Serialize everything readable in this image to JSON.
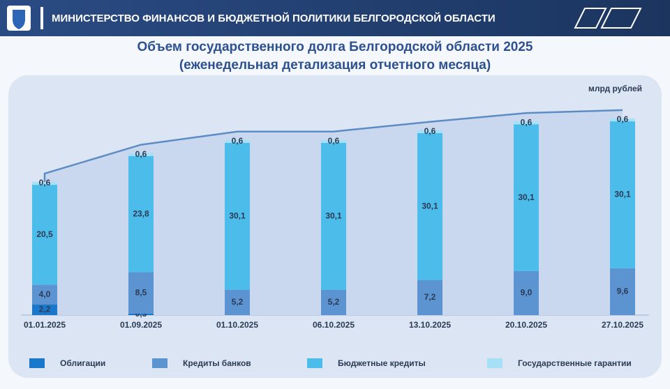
{
  "header": {
    "title": "МИНИСТЕРСТВО ФИНАНСОВ И БЮДЖЕТНОЙ ПОЛИТИКИ БЕЛГОРОДСКОЙ ОБЛАСТИ"
  },
  "chart_data": {
    "type": "stacked_bar",
    "title": "Объем государственного долга Белгородской области 2025",
    "subtitle": "(еженедельная детализация отчетного месяца)",
    "unit_label": "млрд рублей",
    "categories": [
      "01.01.2025",
      "01.09.2025",
      "01.10.2025",
      "06.10.2025",
      "13.10.2025",
      "20.10.2025",
      "27.10.2025"
    ],
    "ylim": [
      0,
      42
    ],
    "series": [
      {
        "name": "Облигации",
        "color": "#1a78cc",
        "values": [
          2.2,
          0.3,
          null,
          null,
          null,
          null,
          null
        ],
        "value_labels": [
          "2,2",
          "0,3",
          null,
          null,
          null,
          null,
          null
        ]
      },
      {
        "name": "Кредиты банков",
        "color": "#5b94d0",
        "values": [
          4.0,
          8.5,
          5.2,
          5.2,
          7.2,
          9.0,
          9.6
        ],
        "value_labels": [
          "4,0",
          "8,5",
          "5,2",
          "5,2",
          "7,2",
          "9,0",
          "9,6"
        ]
      },
      {
        "name": "Бюджетные кредиты",
        "color": "#4cbdea",
        "values": [
          20.5,
          23.8,
          30.1,
          30.1,
          30.1,
          30.1,
          30.1
        ],
        "value_labels": [
          "20,5",
          "23,8",
          "30,1",
          "30,1",
          "30,1",
          "30,1",
          "30,1"
        ]
      },
      {
        "name": "Государственные гарантии",
        "color": "#a5e0f6",
        "values": [
          0.6,
          0.6,
          0.6,
          0.6,
          0.6,
          0.6,
          0.6
        ],
        "value_labels": [
          "0,6",
          "0,6",
          "0,6",
          "0,6",
          "0,6",
          "0,6",
          "0,6"
        ]
      }
    ]
  }
}
